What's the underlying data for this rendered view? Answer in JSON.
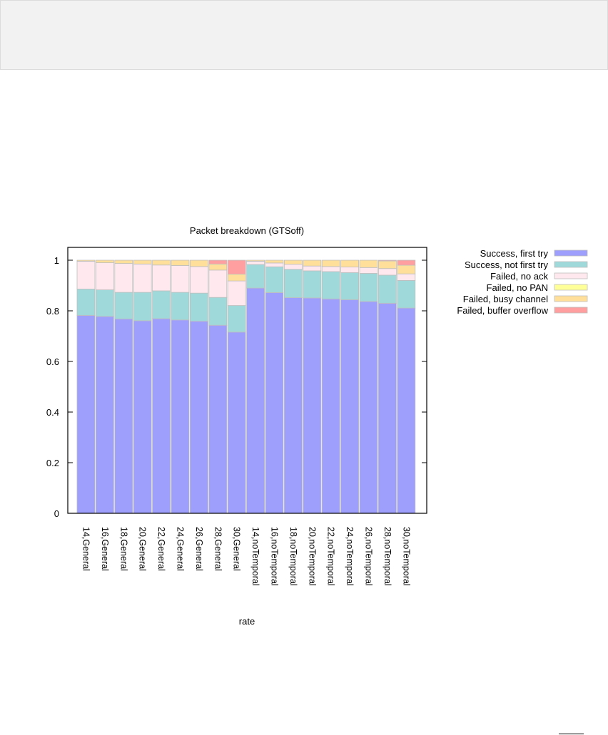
{
  "chart_data": {
    "type": "bar",
    "stacked": true,
    "title": "Packet breakdown (GTSoff)",
    "xlabel": "rate",
    "ylabel": "",
    "ylim": [
      0,
      1.05
    ],
    "yticks": [
      0,
      0.2,
      0.4,
      0.6,
      0.8,
      1
    ],
    "ytick_labels": [
      "0",
      "0.2",
      "0.4",
      "0.6",
      "0.8",
      "1"
    ],
    "grid": false,
    "legend_position": "outside-top-right",
    "categories": [
      "14,General",
      "16,General",
      "18,General",
      "20,General",
      "22,General",
      "24,General",
      "26,General",
      "28,General",
      "30,General",
      "14,noTemporal",
      "16,noTemporal",
      "18,noTemporal",
      "20,noTemporal",
      "22,noTemporal",
      "24,noTemporal",
      "26,noTemporal",
      "28,noTemporal",
      "30,noTemporal"
    ],
    "series": [
      {
        "name": "Success, first try",
        "color": "#9e9efd",
        "values": [
          0.782,
          0.778,
          0.768,
          0.761,
          0.769,
          0.764,
          0.759,
          0.743,
          0.716,
          0.89,
          0.872,
          0.852,
          0.851,
          0.847,
          0.844,
          0.837,
          0.83,
          0.811
        ]
      },
      {
        "name": "Success, not first try",
        "color": "#9fd9d9",
        "values": [
          0.104,
          0.105,
          0.105,
          0.112,
          0.11,
          0.109,
          0.111,
          0.11,
          0.105,
          0.093,
          0.102,
          0.112,
          0.107,
          0.108,
          0.107,
          0.111,
          0.111,
          0.109
        ]
      },
      {
        "name": "Failed, no ack",
        "color": "#ffe8ee",
        "values": [
          0.11,
          0.107,
          0.114,
          0.112,
          0.102,
          0.106,
          0.105,
          0.108,
          0.097,
          0.013,
          0.015,
          0.02,
          0.019,
          0.02,
          0.022,
          0.023,
          0.026,
          0.026
        ]
      },
      {
        "name": "Failed, no PAN",
        "color": "#ffff99",
        "values": [
          0,
          0,
          0,
          0,
          0,
          0,
          0,
          0,
          0,
          0,
          0,
          0,
          0,
          0,
          0,
          0,
          0,
          0
        ]
      },
      {
        "name": "Failed, busy channel",
        "color": "#ffdf99",
        "values": [
          0.004,
          0.01,
          0.013,
          0.015,
          0.019,
          0.021,
          0.025,
          0.024,
          0.027,
          0.004,
          0.011,
          0.016,
          0.023,
          0.025,
          0.027,
          0.029,
          0.03,
          0.034
        ]
      },
      {
        "name": "Failed, buffer overflow",
        "color": "#ff9f9f",
        "values": [
          0,
          0,
          0,
          0,
          0,
          0,
          0,
          0.015,
          0.055,
          0,
          0,
          0,
          0,
          0,
          0,
          0,
          0.003,
          0.02
        ]
      }
    ]
  }
}
